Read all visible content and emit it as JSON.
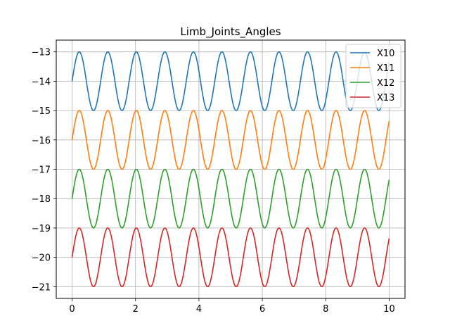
{
  "chart_data": {
    "type": "line",
    "title": "Limb_Joints_Angles",
    "xlabel": "",
    "ylabel": "",
    "xlim": [
      -0.5,
      10.5
    ],
    "ylim": [
      -21.4,
      -12.6
    ],
    "xticks": [
      0,
      2,
      4,
      6,
      8,
      10
    ],
    "yticks": [
      -13,
      -14,
      -15,
      -16,
      -17,
      -18,
      -19,
      -20,
      -21
    ],
    "grid": true,
    "legend_position": "top-right",
    "x_range": [
      0,
      10
    ],
    "series": [
      {
        "name": "X10",
        "color": "#1f77b4",
        "center": -14,
        "amplitude": 1,
        "period": 0.9
      },
      {
        "name": "X11",
        "color": "#ff7f0e",
        "center": -16,
        "amplitude": 1,
        "period": 0.9
      },
      {
        "name": "X12",
        "color": "#2ca02c",
        "center": -18,
        "amplitude": 1,
        "period": 0.9
      },
      {
        "name": "X13",
        "color": "#d62728",
        "center": -20,
        "amplitude": 1,
        "period": 0.9
      }
    ]
  }
}
